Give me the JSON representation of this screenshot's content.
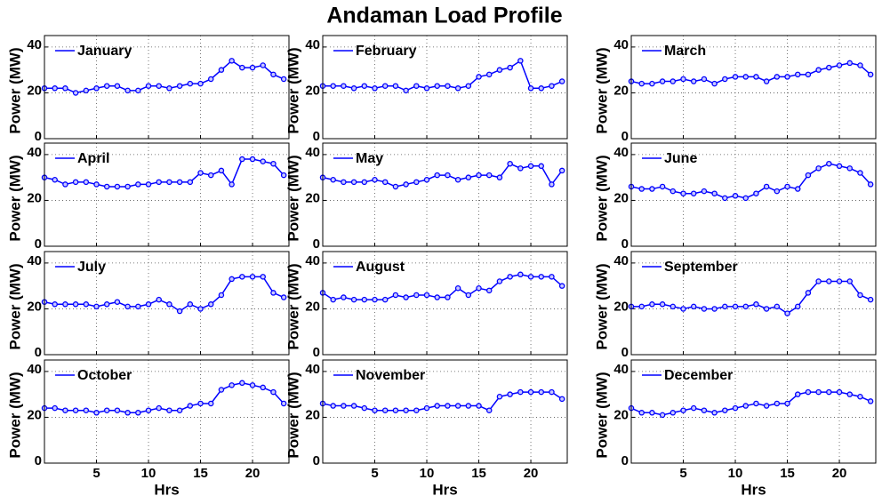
{
  "title": "Andaman Load Profile",
  "chart_data": [
    {
      "type": "line",
      "x": [
        0,
        1,
        2,
        3,
        4,
        5,
        6,
        7,
        8,
        9,
        10,
        11,
        12,
        13,
        14,
        15,
        16,
        17,
        18,
        19,
        20,
        21,
        22,
        23
      ],
      "series": [
        {
          "name": "January",
          "color": "#0000ff",
          "values": [
            22,
            22,
            22,
            20,
            21,
            22,
            23,
            23,
            21,
            21,
            23,
            23,
            22,
            23,
            24,
            24,
            26,
            30,
            34,
            31,
            31,
            32,
            28,
            26
          ]
        }
      ],
      "xlim": [
        0,
        23.5
      ],
      "ylim": [
        0,
        45
      ],
      "xticks": [
        5,
        10,
        15,
        20
      ],
      "yticks": [
        0,
        20,
        40
      ],
      "ylabel": "Power (MW)",
      "grid": true,
      "legend": "upper left",
      "show_xtick_labels": false
    },
    {
      "type": "line",
      "x": [
        0,
        1,
        2,
        3,
        4,
        5,
        6,
        7,
        8,
        9,
        10,
        11,
        12,
        13,
        14,
        15,
        16,
        17,
        18,
        19,
        20,
        21,
        22,
        23
      ],
      "series": [
        {
          "name": "February",
          "color": "#0000ff",
          "values": [
            23,
            23,
            23,
            22,
            23,
            22,
            23,
            23,
            21,
            23,
            22,
            23,
            23,
            22,
            23,
            27,
            28,
            30,
            31,
            34,
            22,
            22,
            23,
            25
          ]
        }
      ],
      "xlim": [
        0,
        23.5
      ],
      "ylim": [
        0,
        45
      ],
      "xticks": [
        5,
        10,
        15,
        20
      ],
      "yticks": [
        0,
        20,
        40
      ],
      "ylabel": "Power (MW)",
      "grid": true,
      "legend": "upper left",
      "show_xtick_labels": false
    },
    {
      "type": "line",
      "x": [
        0,
        1,
        2,
        3,
        4,
        5,
        6,
        7,
        8,
        9,
        10,
        11,
        12,
        13,
        14,
        15,
        16,
        17,
        18,
        19,
        20,
        21,
        22,
        23
      ],
      "series": [
        {
          "name": "March",
          "color": "#0000ff",
          "values": [
            25,
            24,
            24,
            25,
            25,
            26,
            25,
            26,
            24,
            26,
            27,
            27,
            27,
            25,
            27,
            27,
            28,
            28,
            30,
            31,
            32,
            33,
            32,
            28
          ]
        }
      ],
      "xlim": [
        0,
        23.5
      ],
      "ylim": [
        0,
        45
      ],
      "xticks": [
        5,
        10,
        15,
        20
      ],
      "yticks": [
        0,
        20,
        40
      ],
      "ylabel": "Power (MW)",
      "grid": true,
      "legend": "upper left",
      "show_xtick_labels": false
    },
    {
      "type": "line",
      "x": [
        0,
        1,
        2,
        3,
        4,
        5,
        6,
        7,
        8,
        9,
        10,
        11,
        12,
        13,
        14,
        15,
        16,
        17,
        18,
        19,
        20,
        21,
        22,
        23
      ],
      "series": [
        {
          "name": "April",
          "color": "#0000ff",
          "values": [
            30,
            29,
            27,
            28,
            28,
            27,
            26,
            26,
            26,
            27,
            27,
            28,
            28,
            28,
            28,
            32,
            31,
            33,
            27,
            38,
            38,
            37,
            36,
            31
          ]
        }
      ],
      "xlim": [
        0,
        23.5
      ],
      "ylim": [
        0,
        45
      ],
      "xticks": [
        5,
        10,
        15,
        20
      ],
      "yticks": [
        0,
        20,
        40
      ],
      "ylabel": "Power (MW)",
      "grid": true,
      "legend": "upper left",
      "show_xtick_labels": false
    },
    {
      "type": "line",
      "x": [
        0,
        1,
        2,
        3,
        4,
        5,
        6,
        7,
        8,
        9,
        10,
        11,
        12,
        13,
        14,
        15,
        16,
        17,
        18,
        19,
        20,
        21,
        22,
        23
      ],
      "series": [
        {
          "name": "May",
          "color": "#0000ff",
          "values": [
            30,
            29,
            28,
            28,
            28,
            29,
            28,
            26,
            27,
            28,
            29,
            31,
            31,
            29,
            30,
            31,
            31,
            30,
            36,
            34,
            35,
            35,
            27,
            33
          ]
        }
      ],
      "xlim": [
        0,
        23.5
      ],
      "ylim": [
        0,
        45
      ],
      "xticks": [
        5,
        10,
        15,
        20
      ],
      "yticks": [
        0,
        20,
        40
      ],
      "ylabel": "Power (MW)",
      "grid": true,
      "legend": "upper left",
      "show_xtick_labels": false
    },
    {
      "type": "line",
      "x": [
        0,
        1,
        2,
        3,
        4,
        5,
        6,
        7,
        8,
        9,
        10,
        11,
        12,
        13,
        14,
        15,
        16,
        17,
        18,
        19,
        20,
        21,
        22,
        23
      ],
      "series": [
        {
          "name": "June",
          "color": "#0000ff",
          "values": [
            26,
            25,
            25,
            26,
            24,
            23,
            23,
            24,
            23,
            21,
            22,
            21,
            23,
            26,
            24,
            26,
            25,
            31,
            34,
            36,
            35,
            34,
            32,
            27
          ]
        }
      ],
      "xlim": [
        0,
        23.5
      ],
      "ylim": [
        0,
        45
      ],
      "xticks": [
        5,
        10,
        15,
        20
      ],
      "yticks": [
        0,
        20,
        40
      ],
      "ylabel": "Power (MW)",
      "grid": true,
      "legend": "upper left",
      "show_xtick_labels": false
    },
    {
      "type": "line",
      "x": [
        0,
        1,
        2,
        3,
        4,
        5,
        6,
        7,
        8,
        9,
        10,
        11,
        12,
        13,
        14,
        15,
        16,
        17,
        18,
        19,
        20,
        21,
        22,
        23
      ],
      "series": [
        {
          "name": "July",
          "color": "#0000ff",
          "values": [
            23,
            22,
            22,
            22,
            22,
            21,
            22,
            23,
            21,
            21,
            22,
            24,
            22,
            19,
            22,
            20,
            22,
            26,
            33,
            34,
            34,
            34,
            27,
            25
          ]
        }
      ],
      "xlim": [
        0,
        23.5
      ],
      "ylim": [
        0,
        45
      ],
      "xticks": [
        5,
        10,
        15,
        20
      ],
      "yticks": [
        0,
        20,
        40
      ],
      "ylabel": "Power (MW)",
      "grid": true,
      "legend": "upper left",
      "show_xtick_labels": false
    },
    {
      "type": "line",
      "x": [
        0,
        1,
        2,
        3,
        4,
        5,
        6,
        7,
        8,
        9,
        10,
        11,
        12,
        13,
        14,
        15,
        16,
        17,
        18,
        19,
        20,
        21,
        22,
        23
      ],
      "series": [
        {
          "name": "August",
          "color": "#0000ff",
          "values": [
            27,
            24,
            25,
            24,
            24,
            24,
            24,
            26,
            25,
            26,
            26,
            25,
            25,
            29,
            26,
            29,
            28,
            32,
            34,
            35,
            34,
            34,
            34,
            30
          ]
        }
      ],
      "xlim": [
        0,
        23.5
      ],
      "ylim": [
        0,
        45
      ],
      "xticks": [
        5,
        10,
        15,
        20
      ],
      "yticks": [
        0,
        20,
        40
      ],
      "ylabel": "Power (MW)",
      "grid": true,
      "legend": "upper left",
      "show_xtick_labels": false
    },
    {
      "type": "line",
      "x": [
        0,
        1,
        2,
        3,
        4,
        5,
        6,
        7,
        8,
        9,
        10,
        11,
        12,
        13,
        14,
        15,
        16,
        17,
        18,
        19,
        20,
        21,
        22,
        23
      ],
      "series": [
        {
          "name": "September",
          "color": "#0000ff",
          "values": [
            21,
            21,
            22,
            22,
            21,
            20,
            21,
            20,
            20,
            21,
            21,
            21,
            22,
            20,
            21,
            18,
            21,
            27,
            32,
            32,
            32,
            32,
            26,
            24
          ]
        }
      ],
      "xlim": [
        0,
        23.5
      ],
      "ylim": [
        0,
        45
      ],
      "xticks": [
        5,
        10,
        15,
        20
      ],
      "yticks": [
        0,
        20,
        40
      ],
      "ylabel": "Power (MW)",
      "grid": true,
      "legend": "upper left",
      "show_xtick_labels": false
    },
    {
      "type": "line",
      "x": [
        0,
        1,
        2,
        3,
        4,
        5,
        6,
        7,
        8,
        9,
        10,
        11,
        12,
        13,
        14,
        15,
        16,
        17,
        18,
        19,
        20,
        21,
        22,
        23
      ],
      "series": [
        {
          "name": "October",
          "color": "#0000ff",
          "values": [
            24,
            24,
            23,
            23,
            23,
            22,
            23,
            23,
            22,
            22,
            23,
            24,
            23,
            23,
            25,
            26,
            26,
            32,
            34,
            35,
            34,
            33,
            31,
            26
          ]
        }
      ],
      "xlim": [
        0,
        23.5
      ],
      "ylim": [
        0,
        45
      ],
      "xticks": [
        5,
        10,
        15,
        20
      ],
      "yticks": [
        0,
        20,
        40
      ],
      "ylabel": "Power (MW)",
      "xlabel": "Hrs",
      "grid": true,
      "legend": "upper left",
      "show_xtick_labels": true
    },
    {
      "type": "line",
      "x": [
        0,
        1,
        2,
        3,
        4,
        5,
        6,
        7,
        8,
        9,
        10,
        11,
        12,
        13,
        14,
        15,
        16,
        17,
        18,
        19,
        20,
        21,
        22,
        23
      ],
      "series": [
        {
          "name": "November",
          "color": "#0000ff",
          "values": [
            26,
            25,
            25,
            25,
            24,
            23,
            23,
            23,
            23,
            23,
            24,
            25,
            25,
            25,
            25,
            25,
            23,
            29,
            30,
            31,
            31,
            31,
            31,
            28
          ]
        }
      ],
      "xlim": [
        0,
        23.5
      ],
      "ylim": [
        0,
        45
      ],
      "xticks": [
        5,
        10,
        15,
        20
      ],
      "yticks": [
        0,
        20,
        40
      ],
      "ylabel": "Power (MW)",
      "xlabel": "Hrs",
      "grid": true,
      "legend": "upper left",
      "show_xtick_labels": true
    },
    {
      "type": "line",
      "x": [
        0,
        1,
        2,
        3,
        4,
        5,
        6,
        7,
        8,
        9,
        10,
        11,
        12,
        13,
        14,
        15,
        16,
        17,
        18,
        19,
        20,
        21,
        22,
        23
      ],
      "series": [
        {
          "name": "December",
          "color": "#0000ff",
          "values": [
            24,
            22,
            22,
            21,
            22,
            23,
            24,
            23,
            22,
            23,
            24,
            25,
            26,
            25,
            26,
            26,
            30,
            31,
            31,
            31,
            31,
            30,
            29,
            27
          ]
        }
      ],
      "xlim": [
        0,
        23.5
      ],
      "ylim": [
        0,
        45
      ],
      "xticks": [
        5,
        10,
        15,
        20
      ],
      "yticks": [
        0,
        20,
        40
      ],
      "ylabel": "Power (MW)",
      "xlabel": "Hrs",
      "grid": true,
      "legend": "upper left",
      "show_xtick_labels": true
    }
  ]
}
